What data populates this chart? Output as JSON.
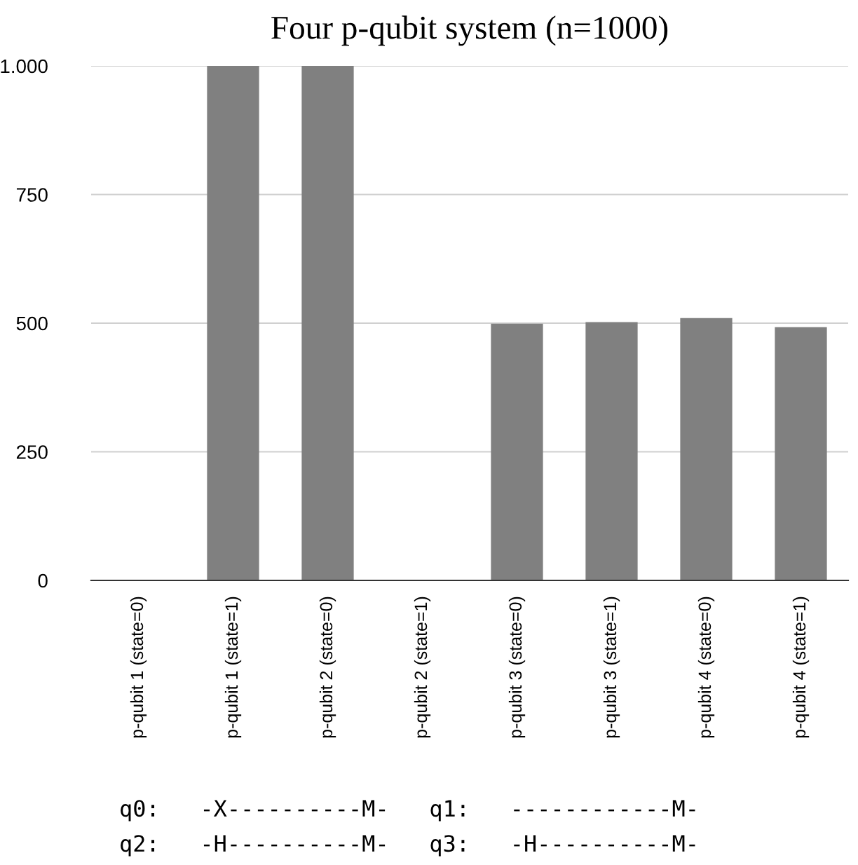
{
  "chart_data": {
    "type": "bar",
    "title": "Four p-qubit system (n=1000)",
    "categories": [
      "p-qubit 1 (state=0)",
      "p-qubit 1 (state=1)",
      "p-qubit 2 (state=0)",
      "p-qubit 2 (state=1)",
      "p-qubit 3 (state=0)",
      "p-qubit 3 (state=1)",
      "p-qubit 4 (state=0)",
      "p-qubit 4 (state=1)"
    ],
    "values": [
      0,
      1000,
      1000,
      0,
      499,
      502,
      510,
      492
    ],
    "color": "#808080",
    "ylim": [
      0,
      1000
    ],
    "yticks": [
      0,
      250,
      500,
      750,
      {
        "value": 1000,
        "label": "1.000"
      }
    ],
    "grid": "y",
    "annotations": [
      "q0:   -X----------M-   q1:   ------------M-",
      "q2:   -H----------M-   q3:   -H----------M-"
    ]
  }
}
